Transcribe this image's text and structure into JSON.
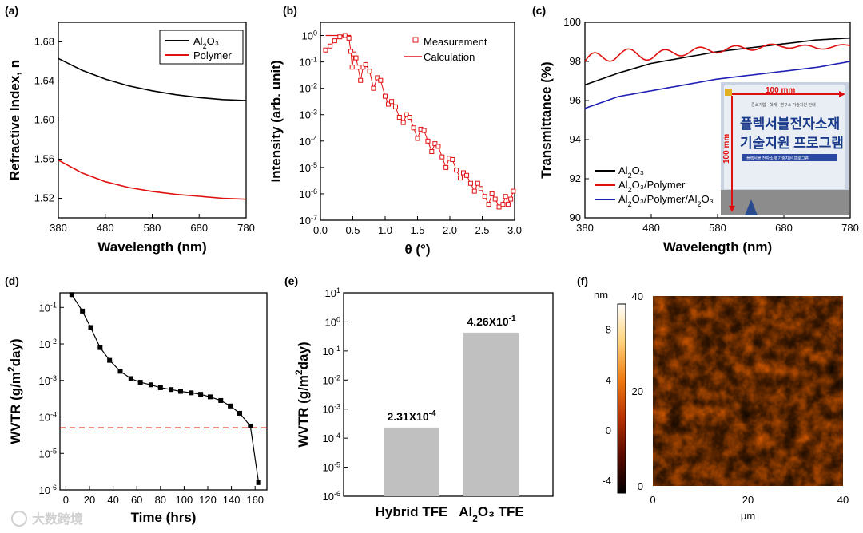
{
  "panels": {
    "a": {
      "letter": "(a)"
    },
    "b": {
      "letter": "(b)"
    },
    "c": {
      "letter": "(c)"
    },
    "d": {
      "letter": "(d)"
    },
    "e": {
      "letter": "(e)"
    },
    "f": {
      "letter": "(f)"
    }
  },
  "photo": {
    "dimension_h": "100 mm",
    "dimension_v": "100 mm",
    "header": "중소기업 · 학계 · 연구소 기술지원 안내",
    "title_line1": "플렉서블전자소재",
    "title_line2": "기술지원 프로그램",
    "sub": "플렉서블 전자소재 기술지원 프로그램"
  },
  "watermark": {
    "text": "大数跨境",
    "icon": "brand-logo-icon"
  },
  "colors": {
    "black": "#000000",
    "red": "#e01010",
    "blue": "#1f1fb5",
    "bar": "#c0c0c0"
  },
  "chart_data": [
    {
      "id": "a",
      "type": "line",
      "xlabel": "Wavelength (nm)",
      "ylabel": "Refractive Index, n",
      "xlim": [
        380,
        780
      ],
      "ylim": [
        1.5,
        1.7
      ],
      "xticks": [
        "380",
        "480",
        "580",
        "680",
        "780"
      ],
      "yticks": [
        "1.52",
        "1.56",
        "1.60",
        "1.64",
        "1.68"
      ],
      "legend_position": "top-right",
      "series": [
        {
          "name": "Al₂O₃",
          "color": "#000000",
          "x": [
            380,
            430,
            480,
            530,
            580,
            630,
            680,
            730,
            780
          ],
          "y": [
            1.663,
            1.651,
            1.642,
            1.635,
            1.63,
            1.626,
            1.623,
            1.621,
            1.62
          ]
        },
        {
          "name": "Polymer",
          "color": "#e01010",
          "x": [
            380,
            430,
            480,
            530,
            580,
            630,
            680,
            730,
            780
          ],
          "y": [
            1.559,
            1.546,
            1.537,
            1.531,
            1.527,
            1.524,
            1.522,
            1.52,
            1.519
          ]
        }
      ]
    },
    {
      "id": "b",
      "type": "scatter",
      "xlabel": "θ (°)",
      "ylabel": "Intensity (arb. unit)",
      "xlim": [
        0,
        3.0
      ],
      "ylim_log10": [
        -7,
        0.5
      ],
      "xticks": [
        "0.0",
        "0.5",
        "1.0",
        "1.5",
        "2.0",
        "2.5",
        "3.0"
      ],
      "yticks": [
        "10^-7",
        "10^-6",
        "10^-5",
        "10^-4",
        "10^-3",
        "10^-2",
        "10^-1",
        "10^0"
      ],
      "y_scale": "log",
      "legend_position": "top-right",
      "series": [
        {
          "name": "Measurement",
          "color": "#e01010",
          "marker": "open-square",
          "x": [
            0.08,
            0.15,
            0.22,
            0.3,
            0.38,
            0.44,
            0.47,
            0.49,
            0.52,
            0.55,
            0.58,
            0.62,
            0.66,
            0.7,
            0.76,
            0.82,
            0.88,
            0.93,
            1.0,
            1.05,
            1.1,
            1.16,
            1.22,
            1.28,
            1.33,
            1.38,
            1.44,
            1.5,
            1.55,
            1.6,
            1.66,
            1.72,
            1.77,
            1.82,
            1.88,
            1.94,
            1.99,
            2.04,
            2.1,
            2.16,
            2.21,
            2.26,
            2.32,
            2.38,
            2.43,
            2.48,
            2.54,
            2.6,
            2.65,
            2.7,
            2.76,
            2.82,
            2.86,
            2.9,
            2.94,
            2.98
          ],
          "y_log10": [
            -0.55,
            -0.4,
            -0.2,
            -0.05,
            0.0,
            -0.1,
            -0.6,
            -1.2,
            -0.7,
            -0.85,
            -1.2,
            -1.7,
            -1.2,
            -1.1,
            -1.35,
            -2.0,
            -1.6,
            -1.7,
            -2.3,
            -2.6,
            -2.5,
            -2.7,
            -3.1,
            -3.3,
            -3.0,
            -3.1,
            -3.5,
            -3.9,
            -3.55,
            -3.6,
            -4.0,
            -4.4,
            -4.1,
            -4.2,
            -4.6,
            -5.0,
            -4.65,
            -4.7,
            -5.1,
            -5.4,
            -5.2,
            -5.3,
            -5.6,
            -5.9,
            -5.6,
            -5.8,
            -6.1,
            -6.4,
            -6.0,
            -6.2,
            -6.5,
            -6.4,
            -6.1,
            -6.4,
            -6.2,
            -5.9
          ]
        },
        {
          "name": "Calculation",
          "color": "#e01010",
          "x": [
            0.08,
            0.15,
            0.22,
            0.3,
            0.38,
            0.44,
            0.47
          ],
          "y_log10": [
            0.0,
            0.0,
            0.0,
            0.0,
            0.0,
            0.0,
            0.0
          ]
        }
      ]
    },
    {
      "id": "c",
      "type": "line",
      "xlabel": "Wavelength (nm)",
      "ylabel": "Transmittance (%)",
      "xlim": [
        380,
        780
      ],
      "ylim": [
        90,
        100
      ],
      "xticks": [
        "380",
        "480",
        "580",
        "680",
        "780"
      ],
      "yticks": [
        "90",
        "92",
        "94",
        "96",
        "98",
        "100"
      ],
      "legend_position": "bottom-left",
      "series": [
        {
          "name": "Al₂O₃",
          "color": "#000000",
          "x": [
            380,
            430,
            480,
            530,
            580,
            630,
            680,
            730,
            780
          ],
          "y": [
            96.8,
            97.4,
            97.9,
            98.2,
            98.5,
            98.7,
            98.9,
            99.1,
            99.2
          ]
        },
        {
          "name": "Al₂O₃/Polymer",
          "color": "#e01010",
          "x": [
            380,
            430,
            480,
            530,
            580,
            630,
            680,
            730,
            780
          ],
          "y": [
            98.0,
            98.4,
            98.3,
            98.5,
            98.6,
            98.7,
            98.8,
            98.7,
            98.8
          ]
        },
        {
          "name": "Al₂O₃/Polymer/Al₂O₃",
          "color": "#1f1fb5",
          "x": [
            380,
            430,
            480,
            530,
            580,
            630,
            680,
            730,
            780
          ],
          "y": [
            95.6,
            96.2,
            96.5,
            96.8,
            97.1,
            97.3,
            97.5,
            97.7,
            98.0
          ]
        }
      ]
    },
    {
      "id": "d",
      "type": "line",
      "xlabel": "Time (hrs)",
      "ylabel": "WVTR (g/m²day)",
      "xlim": [
        -5,
        170
      ],
      "ylim_log10": [
        -6,
        -0.6
      ],
      "xticks": [
        "0",
        "20",
        "40",
        "60",
        "80",
        "100",
        "120",
        "140",
        "160"
      ],
      "yticks": [
        "10^-6",
        "10^-5",
        "10^-4",
        "10^-3",
        "10^-2",
        "10^-1"
      ],
      "y_scale": "log",
      "threshold_log10": -4.3,
      "series": [
        {
          "name": "",
          "color": "#000000",
          "marker": "filled-square",
          "x": [
            5,
            14,
            21,
            29,
            37,
            46,
            55,
            63,
            72,
            80,
            89,
            97,
            106,
            114,
            122,
            131,
            139,
            147,
            156,
            163
          ],
          "y_log10": [
            -0.65,
            -1.1,
            -1.55,
            -2.1,
            -2.45,
            -2.75,
            -2.95,
            -3.05,
            -3.12,
            -3.2,
            -3.25,
            -3.3,
            -3.34,
            -3.38,
            -3.45,
            -3.55,
            -3.7,
            -3.9,
            -4.25,
            -5.8
          ]
        }
      ]
    },
    {
      "id": "e",
      "type": "bar",
      "ylabel": "WVTR (g/m²day)",
      "categories": [
        "Hybrid TFE",
        "Al₂O₃ TFE"
      ],
      "values": [
        0.000231,
        0.426
      ],
      "data_labels": [
        "2.31X10⁻⁴",
        "4.26X10⁻¹"
      ],
      "y_scale": "log",
      "ylim_log10": [
        -6,
        1
      ],
      "yticks": [
        "10^-6",
        "10^-5",
        "10^-4",
        "10^-3",
        "10^-2",
        "10^-1",
        "10^0",
        "10^1"
      ]
    },
    {
      "id": "f",
      "type": "heatmap",
      "xlabel": "μm",
      "xlim": [
        0,
        40
      ],
      "ylim": [
        0,
        40
      ],
      "xticks": [
        "0",
        "20",
        "40"
      ],
      "yticks": [
        "0",
        "20",
        "40"
      ],
      "colorbar_label": "nm",
      "colorbar_ticks": [
        "-4",
        "0",
        "4",
        "8"
      ],
      "colorbar_range": [
        -5,
        10
      ]
    }
  ]
}
